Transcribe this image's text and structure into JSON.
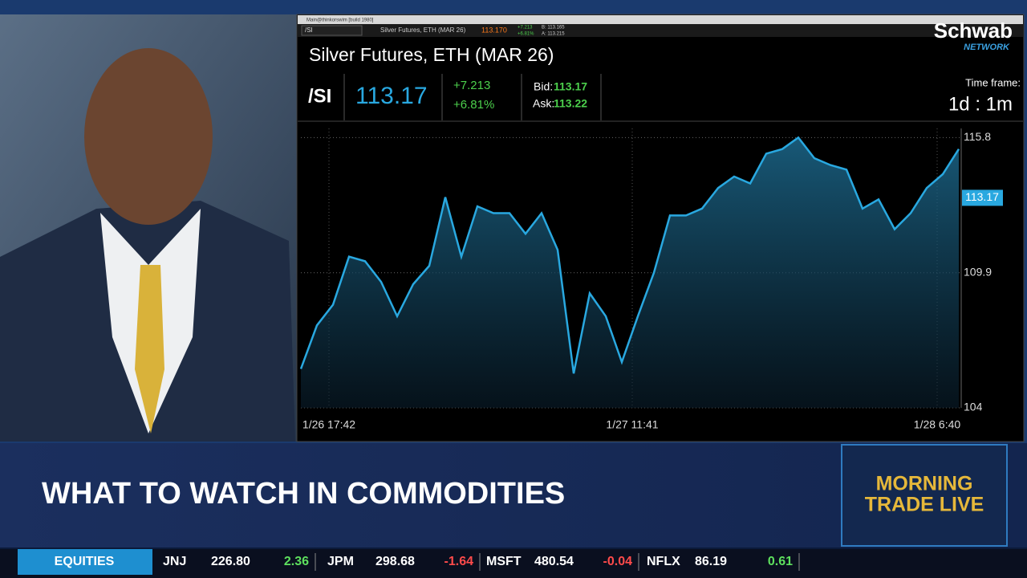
{
  "window": {
    "title": "Main@thinkorswim [build 1980]"
  },
  "toolbar": {
    "symbol": "/SI",
    "name": "Silver Futures, ETH (MAR 26)",
    "last": "113.170",
    "change": "+7.213",
    "percent": "+6.81%",
    "bid": "B: 113.165",
    "ask": "A: 113.215"
  },
  "quote": {
    "title": "Silver Futures, ETH (MAR 26)",
    "symbol": "/SI",
    "last": "113.17",
    "change": "+7.213",
    "percent": "+6.81%",
    "bid_label": "Bid:",
    "bid": "113.17",
    "ask_label": "Ask:",
    "ask": "113.22",
    "timeframe_label": "Time frame:",
    "timeframe": "1d : 1m"
  },
  "logo": {
    "name": "Schwab",
    "sub": "NETWORK"
  },
  "chart": {
    "type": "line",
    "color": "#29a8e0",
    "values": [
      105.7,
      107.6,
      108.5,
      110.6,
      110.4,
      109.5,
      108.0,
      109.4,
      110.2,
      113.2,
      110.6,
      112.8,
      112.5,
      112.5,
      111.6,
      112.5,
      110.9,
      105.5,
      109.0,
      108.0,
      106.0,
      108.0,
      109.9,
      112.4,
      112.4,
      112.7,
      113.6,
      114.1,
      113.8,
      115.1,
      115.3,
      115.8,
      114.9,
      114.6,
      114.4,
      112.7,
      113.1,
      111.8,
      112.5,
      113.6,
      114.2,
      115.3
    ],
    "xlim": [
      0,
      41
    ],
    "xticks": [
      {
        "value": 1.75,
        "label": "1/26 17:42"
      },
      {
        "value": 20.65,
        "label": "1/27 11:41"
      },
      {
        "value": 39.65,
        "label": "1/28 6:40"
      }
    ],
    "ylim": [
      104,
      116.2
    ],
    "yticks": [
      104,
      109.9,
      115.8
    ],
    "grid": true
  },
  "banner": {
    "headline": "WHAT TO WATCH IN COMMODITIES",
    "show_line1": "MORNING",
    "show_line2": "TRADE LIVE"
  },
  "ticker": {
    "label": "EQUITIES",
    "items": [
      {
        "symbol": "JNJ",
        "price": "226.80",
        "change": "2.36"
      },
      {
        "symbol": "JPM",
        "price": "298.68",
        "change": "-1.64"
      },
      {
        "symbol": "MSFT",
        "price": "480.54",
        "change": "-0.04"
      },
      {
        "symbol": "NFLX",
        "price": "86.19",
        "change": "0.61"
      }
    ]
  }
}
